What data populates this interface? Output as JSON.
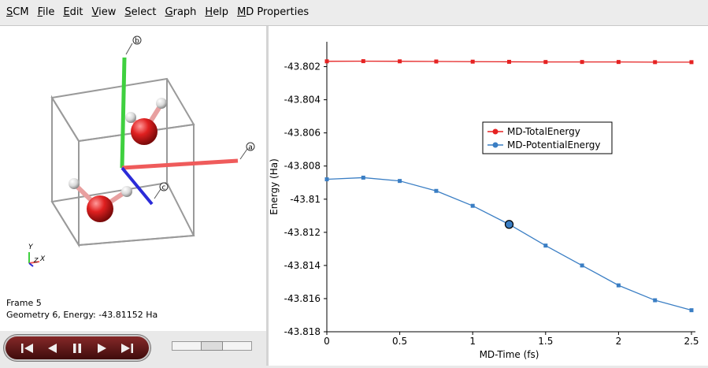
{
  "menu": [
    {
      "label": "SCM",
      "u": "S",
      "rest": "CM"
    },
    {
      "label": "File",
      "u": "F",
      "rest": "ile"
    },
    {
      "label": "Edit",
      "u": "E",
      "rest": "dit"
    },
    {
      "label": "View",
      "u": "V",
      "rest": "iew"
    },
    {
      "label": "Select",
      "u": "S",
      "rest": "elect"
    },
    {
      "label": "Graph",
      "u": "G",
      "rest": "raph"
    },
    {
      "label": "Help",
      "u": "H",
      "rest": "elp"
    },
    {
      "label": "MD Properties",
      "u": "M",
      "rest": "D Properties"
    }
  ],
  "viewer": {
    "axis_labels": {
      "a": "a",
      "b": "b",
      "c": "c"
    },
    "triad": {
      "x": "X",
      "y": "Y",
      "z": "Z"
    }
  },
  "frame_info": {
    "frame": "Frame 5",
    "geometry": "Geometry 6, Energy: -43.81152 Ha"
  },
  "player": {
    "buttons": [
      "first-frame",
      "previous-frame",
      "pause",
      "next-frame",
      "last-frame"
    ],
    "slider_value": 0.5
  },
  "colors": {
    "total": "#e52222",
    "potential": "#3a7ec4",
    "axis_a": "#ef5b5b",
    "axis_b": "#3fd03f",
    "axis_c": "#2b2bd8"
  },
  "chart_data": {
    "type": "line",
    "xlabel": "MD-Time (fs)",
    "ylabel": "Energy (Ha)",
    "xlim": [
      0,
      2.5
    ],
    "ylim": [
      -43.818,
      -43.8005
    ],
    "xticks": [
      "0",
      "0.5",
      "1",
      "1.5",
      "2",
      "2.5"
    ],
    "yticks": [
      "-43.802",
      "-43.804",
      "-43.806",
      "-43.808",
      "-43.81",
      "-43.812",
      "-43.814",
      "-43.816",
      "-43.818"
    ],
    "legend_position": "upper-center",
    "grid": false,
    "x": [
      0,
      0.25,
      0.5,
      0.75,
      1.0,
      1.25,
      1.5,
      1.75,
      2.0,
      2.25,
      2.5
    ],
    "series": [
      {
        "name": "MD-TotalEnergy",
        "color": "#e52222",
        "values": [
          -43.80168,
          -43.80167,
          -43.80168,
          -43.80169,
          -43.8017,
          -43.80171,
          -43.80172,
          -43.80172,
          -43.80172,
          -43.80173,
          -43.80173
        ]
      },
      {
        "name": "MD-PotentialEnergy",
        "color": "#3a7ec4",
        "values": [
          -43.8088,
          -43.8087,
          -43.8089,
          -43.8095,
          -43.8104,
          -43.81152,
          -43.8128,
          -43.814,
          -43.8152,
          -43.8161,
          -43.8167
        ]
      }
    ],
    "highlight": {
      "x": 1.25,
      "y": -43.81152
    }
  }
}
